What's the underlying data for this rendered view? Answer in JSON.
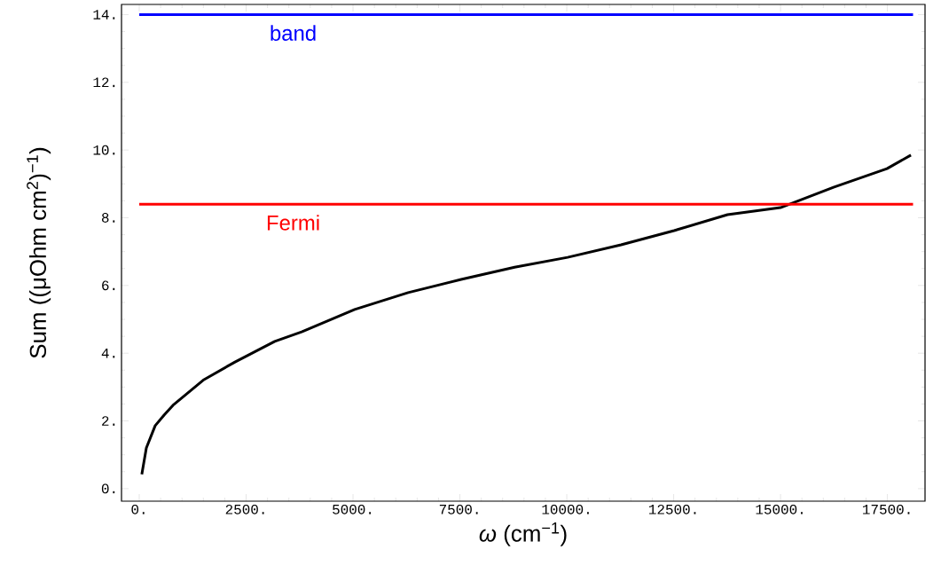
{
  "chart_data": {
    "type": "line",
    "xlabel": "*ω*  (cm$^{−1}$)",
    "ylabel": "Sum  ((μOhm cm$^{2}$)$^{−1}$)",
    "x": [
      60,
      166,
      373,
      580,
      788,
      1515,
      2240,
      3170,
      3800,
      5040,
      6290,
      7530,
      8780,
      10020,
      11270,
      12510,
      13760,
      15000,
      16240,
      17490,
      18050
    ],
    "series": [
      {
        "color": "#000000",
        "values": [
          0.42,
          1.2,
          1.86,
          2.17,
          2.46,
          3.22,
          3.74,
          4.35,
          4.63,
          5.29,
          5.79,
          6.18,
          6.54,
          6.83,
          7.2,
          7.62,
          8.09,
          8.3,
          8.9,
          9.45,
          9.85
        ]
      }
    ],
    "xlim": [
      -415,
      18380
    ],
    "ylim": [
      -0.37,
      14.3
    ],
    "xticks": [
      {
        "value": 0,
        "label": "0."
      },
      {
        "value": 2500,
        "label": "2500."
      },
      {
        "value": 5000,
        "label": "5000."
      },
      {
        "value": 7500,
        "label": "7500."
      },
      {
        "value": 10000,
        "label": "10000."
      },
      {
        "value": 12500,
        "label": "12500."
      },
      {
        "value": 15000,
        "label": "15000."
      },
      {
        "value": 17500,
        "label": "17500."
      }
    ],
    "yticks": [
      {
        "value": 0,
        "label": "0."
      },
      {
        "value": 2,
        "label": "2."
      },
      {
        "value": 4,
        "label": "4."
      },
      {
        "value": 6,
        "label": "6."
      },
      {
        "value": 8,
        "label": "8."
      },
      {
        "value": 10,
        "label": "10."
      },
      {
        "value": 12,
        "label": "12."
      },
      {
        "value": 14,
        "label": "14."
      }
    ],
    "ref_lines": [
      {
        "axis": "y",
        "value": 14,
        "label": "band",
        "color": "#0000ff"
      },
      {
        "axis": "y",
        "value": 8.4,
        "label": "Fermi",
        "color": "#ff0000"
      }
    ],
    "marker": "none",
    "line_style": "solid"
  }
}
